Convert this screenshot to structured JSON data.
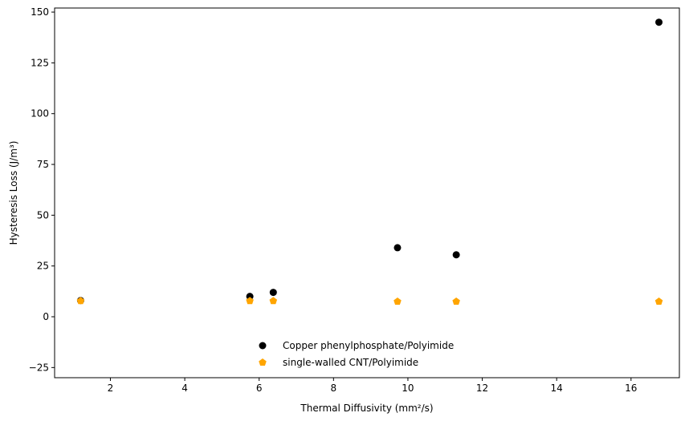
{
  "chart_data": {
    "type": "scatter",
    "title": "",
    "xlabel": "Thermal Diffusivity (mm²/s)",
    "ylabel": "Hysteresis Loss (J/m³)",
    "xlim": [
      0.5,
      17.3
    ],
    "ylim": [
      -30,
      152
    ],
    "xticks": [
      2,
      4,
      6,
      8,
      10,
      12,
      14,
      16
    ],
    "yticks": [
      -25,
      0,
      25,
      50,
      75,
      100,
      125,
      150
    ],
    "grid": false,
    "legend_position": "bottom-center",
    "series": [
      {
        "name": "Copper phenylphosphate/Polyimide",
        "marker": "circle",
        "color": "#000000",
        "x": [
          1.2,
          5.75,
          6.38,
          9.72,
          11.3,
          16.75
        ],
        "y": [
          8.0,
          10.0,
          12.0,
          34.0,
          30.5,
          145.0
        ]
      },
      {
        "name": "single-walled CNT/Polyimide",
        "marker": "pentagon",
        "color": "#FFA500",
        "x": [
          1.2,
          5.75,
          6.38,
          9.72,
          11.3,
          16.75
        ],
        "y": [
          7.8,
          7.8,
          7.8,
          7.5,
          7.5,
          7.5
        ]
      }
    ]
  }
}
